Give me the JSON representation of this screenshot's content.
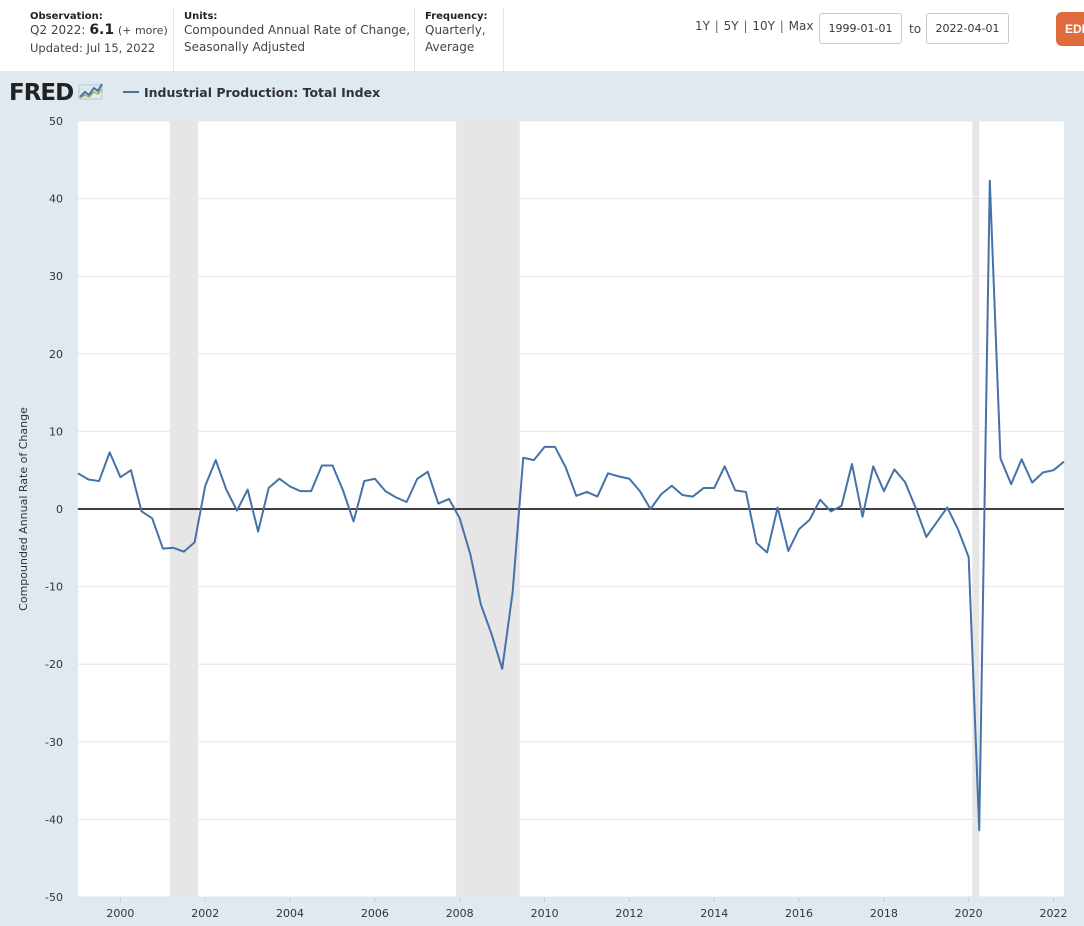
{
  "header": {
    "observation": {
      "label": "Observation:",
      "period": "Q2 2022:",
      "value": "6.1",
      "more": "(+ more)",
      "updated": "Updated: Jul 15, 2022"
    },
    "units": {
      "label": "Units:",
      "line1": "Compounded Annual Rate of Change,",
      "line2": "Seasonally Adjusted"
    },
    "frequency": {
      "label": "Frequency:",
      "line1": "Quarterly,",
      "line2": "Average"
    },
    "range_links": [
      "1Y",
      "5Y",
      "10Y",
      "Max"
    ],
    "range_separator": "|",
    "start_date": "1999-01-01",
    "to_label": "to",
    "end_date": "2022-04-01",
    "edit_button": "EDIT GRAPH"
  },
  "logo": {
    "text": "FRED"
  },
  "colors": {
    "series": "#4572a7",
    "recession": "#e6e6e6",
    "zero_line": "#000000",
    "panel_bg": "#e1e9f0",
    "edit_button": "#e06b3c"
  },
  "chart_data": {
    "type": "line",
    "title": "",
    "xlabel": "",
    "ylabel": "Compounded Annual Rate of Change",
    "ylim": [
      -50,
      50
    ],
    "xlim": [
      "1999-01-01",
      "2022-04-01"
    ],
    "yticks": [
      50,
      40,
      30,
      20,
      10,
      0,
      -10,
      -20,
      -30,
      -40,
      -50
    ],
    "xticks": [
      "2000",
      "2002",
      "2004",
      "2006",
      "2008",
      "2010",
      "2012",
      "2014",
      "2016",
      "2018",
      "2020",
      "2022"
    ],
    "grid": true,
    "legend_position": "top-left",
    "recessions": [
      [
        "2001-03-01",
        "2001-11-01"
      ],
      [
        "2007-12-01",
        "2009-06-01"
      ],
      [
        "2020-02-01",
        "2020-04-01"
      ]
    ],
    "series": [
      {
        "name": "Industrial Production: Total Index",
        "x": [
          "1999-01-01",
          "1999-04-01",
          "1999-07-01",
          "1999-10-01",
          "2000-01-01",
          "2000-04-01",
          "2000-07-01",
          "2000-10-01",
          "2001-01-01",
          "2001-04-01",
          "2001-07-01",
          "2001-10-01",
          "2002-01-01",
          "2002-04-01",
          "2002-07-01",
          "2002-10-01",
          "2003-01-01",
          "2003-04-01",
          "2003-07-01",
          "2003-10-01",
          "2004-01-01",
          "2004-04-01",
          "2004-07-01",
          "2004-10-01",
          "2005-01-01",
          "2005-04-01",
          "2005-07-01",
          "2005-10-01",
          "2006-01-01",
          "2006-04-01",
          "2006-07-01",
          "2006-10-01",
          "2007-01-01",
          "2007-04-01",
          "2007-07-01",
          "2007-10-01",
          "2008-01-01",
          "2008-04-01",
          "2008-07-01",
          "2008-10-01",
          "2009-01-01",
          "2009-04-01",
          "2009-07-01",
          "2009-10-01",
          "2010-01-01",
          "2010-04-01",
          "2010-07-01",
          "2010-10-01",
          "2011-01-01",
          "2011-04-01",
          "2011-07-01",
          "2011-10-01",
          "2012-01-01",
          "2012-04-01",
          "2012-07-01",
          "2012-10-01",
          "2013-01-01",
          "2013-04-01",
          "2013-07-01",
          "2013-10-01",
          "2014-01-01",
          "2014-04-01",
          "2014-07-01",
          "2014-10-01",
          "2015-01-01",
          "2015-04-01",
          "2015-07-01",
          "2015-10-01",
          "2016-01-01",
          "2016-04-01",
          "2016-07-01",
          "2016-10-01",
          "2017-01-01",
          "2017-04-01",
          "2017-07-01",
          "2017-10-01",
          "2018-01-01",
          "2018-04-01",
          "2018-07-01",
          "2018-10-01",
          "2019-01-01",
          "2019-04-01",
          "2019-07-01",
          "2019-10-01",
          "2020-01-01",
          "2020-04-01",
          "2020-07-01",
          "2020-10-01",
          "2021-01-01",
          "2021-04-01",
          "2021-07-01",
          "2021-10-01",
          "2022-01-01",
          "2022-04-01"
        ],
        "values": [
          4.6,
          3.8,
          3.6,
          7.3,
          4.1,
          5.0,
          -0.3,
          -1.2,
          -5.1,
          -5.0,
          -5.5,
          -4.3,
          3.0,
          6.3,
          2.5,
          -0.2,
          2.5,
          -2.9,
          2.7,
          3.9,
          2.9,
          2.3,
          2.3,
          5.6,
          5.6,
          2.4,
          -1.6,
          3.6,
          3.9,
          2.3,
          1.5,
          0.9,
          3.9,
          4.8,
          0.7,
          1.3,
          -1.2,
          -5.8,
          -12.3,
          -16.1,
          -20.6,
          -10.7,
          6.6,
          6.3,
          8.0,
          8.0,
          5.4,
          1.7,
          2.2,
          1.6,
          4.6,
          4.2,
          3.9,
          2.3,
          0.0,
          1.9,
          3.0,
          1.8,
          1.6,
          2.7,
          2.7,
          5.5,
          2.4,
          2.2,
          -4.4,
          -5.6,
          0.2,
          -5.4,
          -2.6,
          -1.4,
          1.2,
          -0.3,
          0.4,
          5.8,
          -1.0,
          5.5,
          2.3,
          5.1,
          3.5,
          0.2,
          -3.6,
          -1.7,
          0.2,
          -2.6,
          -6.2,
          -41.4,
          42.3,
          6.5,
          3.2,
          6.4,
          3.4,
          4.7,
          5.0,
          6.1
        ]
      }
    ]
  }
}
